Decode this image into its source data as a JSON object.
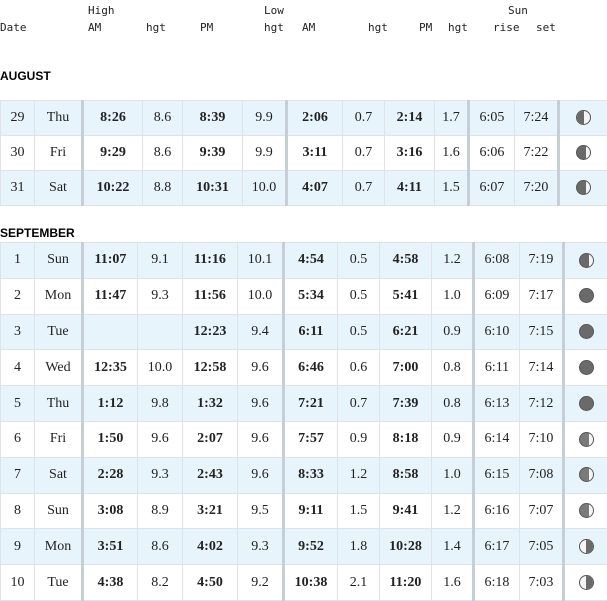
{
  "header": {
    "row1": {
      "high": "High",
      "low": "Low",
      "sun": "Sun"
    },
    "row2": {
      "date": "Date",
      "am1": "AM",
      "hgt1": "hgt",
      "pm1": "PM",
      "hgt2": "hgt",
      "am2": "AM",
      "hgt3": "hgt",
      "pm2": "PM",
      "hgt4": "hgt",
      "rise": "rise",
      "set": "set"
    }
  },
  "months": {
    "august": {
      "label": "AUGUST",
      "rows": [
        {
          "day": "29",
          "dow": "Thu",
          "high_am": "8:26",
          "high_am_hgt": "8.6",
          "high_pm": "8:39",
          "high_pm_hgt": "9.9",
          "low_am": "2:06",
          "low_am_hgt": "0.7",
          "low_pm": "2:14",
          "low_pm_hgt": "1.7",
          "rise": "6:05",
          "set": "7:24",
          "moon": "half-left"
        },
        {
          "day": "30",
          "dow": "Fri",
          "high_am": "9:29",
          "high_am_hgt": "8.6",
          "high_pm": "9:39",
          "high_pm_hgt": "9.9",
          "low_am": "3:11",
          "low_am_hgt": "0.7",
          "low_pm": "3:16",
          "low_pm_hgt": "1.6",
          "rise": "6:06",
          "set": "7:22",
          "moon": "crescent-right"
        },
        {
          "day": "31",
          "dow": "Sat",
          "high_am": "10:22",
          "high_am_hgt": "8.8",
          "high_pm": "10:31",
          "high_pm_hgt": "10.0",
          "low_am": "4:07",
          "low_am_hgt": "0.7",
          "low_pm": "4:11",
          "low_pm_hgt": "1.5",
          "rise": "6:07",
          "set": "7:20",
          "moon": "crescent-right"
        }
      ]
    },
    "september": {
      "label": "SEPTEMBER",
      "rows": [
        {
          "day": "1",
          "dow": "Sun",
          "high_am": "11:07",
          "high_am_hgt": "9.1",
          "high_pm": "11:16",
          "high_pm_hgt": "10.1",
          "low_am": "4:54",
          "low_am_hgt": "0.5",
          "low_pm": "4:58",
          "low_pm_hgt": "1.2",
          "rise": "6:08",
          "set": "7:19",
          "moon": "crescent-right"
        },
        {
          "day": "2",
          "dow": "Mon",
          "high_am": "11:47",
          "high_am_hgt": "9.3",
          "high_pm": "11:56",
          "high_pm_hgt": "10.0",
          "low_am": "5:34",
          "low_am_hgt": "0.5",
          "low_pm": "5:41",
          "low_pm_hgt": "1.0",
          "rise": "6:09",
          "set": "7:17",
          "moon": "full-dark"
        },
        {
          "day": "3",
          "dow": "Tue",
          "high_am": "",
          "high_am_hgt": "",
          "high_pm": "12:23",
          "high_pm_hgt": "9.4",
          "low_am": "6:11",
          "low_am_hgt": "0.5",
          "low_pm": "6:21",
          "low_pm_hgt": "0.9",
          "rise": "6:10",
          "set": "7:15",
          "moon": "full-dark"
        },
        {
          "day": "4",
          "dow": "Wed",
          "high_am": "12:35",
          "high_am_hgt": "10.0",
          "high_pm": "12:58",
          "high_pm_hgt": "9.6",
          "low_am": "6:46",
          "low_am_hgt": "0.6",
          "low_pm": "7:00",
          "low_pm_hgt": "0.8",
          "rise": "6:11",
          "set": "7:14",
          "moon": "full-dark"
        },
        {
          "day": "5",
          "dow": "Thu",
          "high_am": "1:12",
          "high_am_hgt": "9.8",
          "high_pm": "1:32",
          "high_pm_hgt": "9.6",
          "low_am": "7:21",
          "low_am_hgt": "0.7",
          "low_pm": "7:39",
          "low_pm_hgt": "0.8",
          "rise": "6:13",
          "set": "7:12",
          "moon": "full-dark"
        },
        {
          "day": "6",
          "dow": "Fri",
          "high_am": "1:50",
          "high_am_hgt": "9.6",
          "high_pm": "2:07",
          "high_pm_hgt": "9.6",
          "low_am": "7:57",
          "low_am_hgt": "0.9",
          "low_pm": "8:18",
          "low_pm_hgt": "0.9",
          "rise": "6:14",
          "set": "7:10",
          "moon": "gibbous-dark"
        },
        {
          "day": "7",
          "dow": "Sat",
          "high_am": "2:28",
          "high_am_hgt": "9.3",
          "high_pm": "2:43",
          "high_pm_hgt": "9.6",
          "low_am": "8:33",
          "low_am_hgt": "1.2",
          "low_pm": "8:58",
          "low_pm_hgt": "1.0",
          "rise": "6:15",
          "set": "7:08",
          "moon": "gibbous-dark"
        },
        {
          "day": "8",
          "dow": "Sun",
          "high_am": "3:08",
          "high_am_hgt": "8.9",
          "high_pm": "3:21",
          "high_pm_hgt": "9.5",
          "low_am": "9:11",
          "low_am_hgt": "1.5",
          "low_pm": "9:41",
          "low_pm_hgt": "1.2",
          "rise": "6:16",
          "set": "7:07",
          "moon": "gibbous-dark"
        },
        {
          "day": "9",
          "dow": "Mon",
          "high_am": "3:51",
          "high_am_hgt": "8.6",
          "high_pm": "4:02",
          "high_pm_hgt": "9.3",
          "low_am": "9:52",
          "low_am_hgt": "1.8",
          "low_pm": "10:28",
          "low_pm_hgt": "1.4",
          "rise": "6:17",
          "set": "7:05",
          "moon": "half-right"
        },
        {
          "day": "10",
          "dow": "Tue",
          "high_am": "4:38",
          "high_am_hgt": "8.2",
          "high_pm": "4:50",
          "high_pm_hgt": "9.2",
          "low_am": "10:38",
          "low_am_hgt": "2.1",
          "low_pm": "11:20",
          "low_pm_hgt": "1.6",
          "rise": "6:18",
          "set": "7:03",
          "moon": "half-right"
        }
      ]
    }
  }
}
